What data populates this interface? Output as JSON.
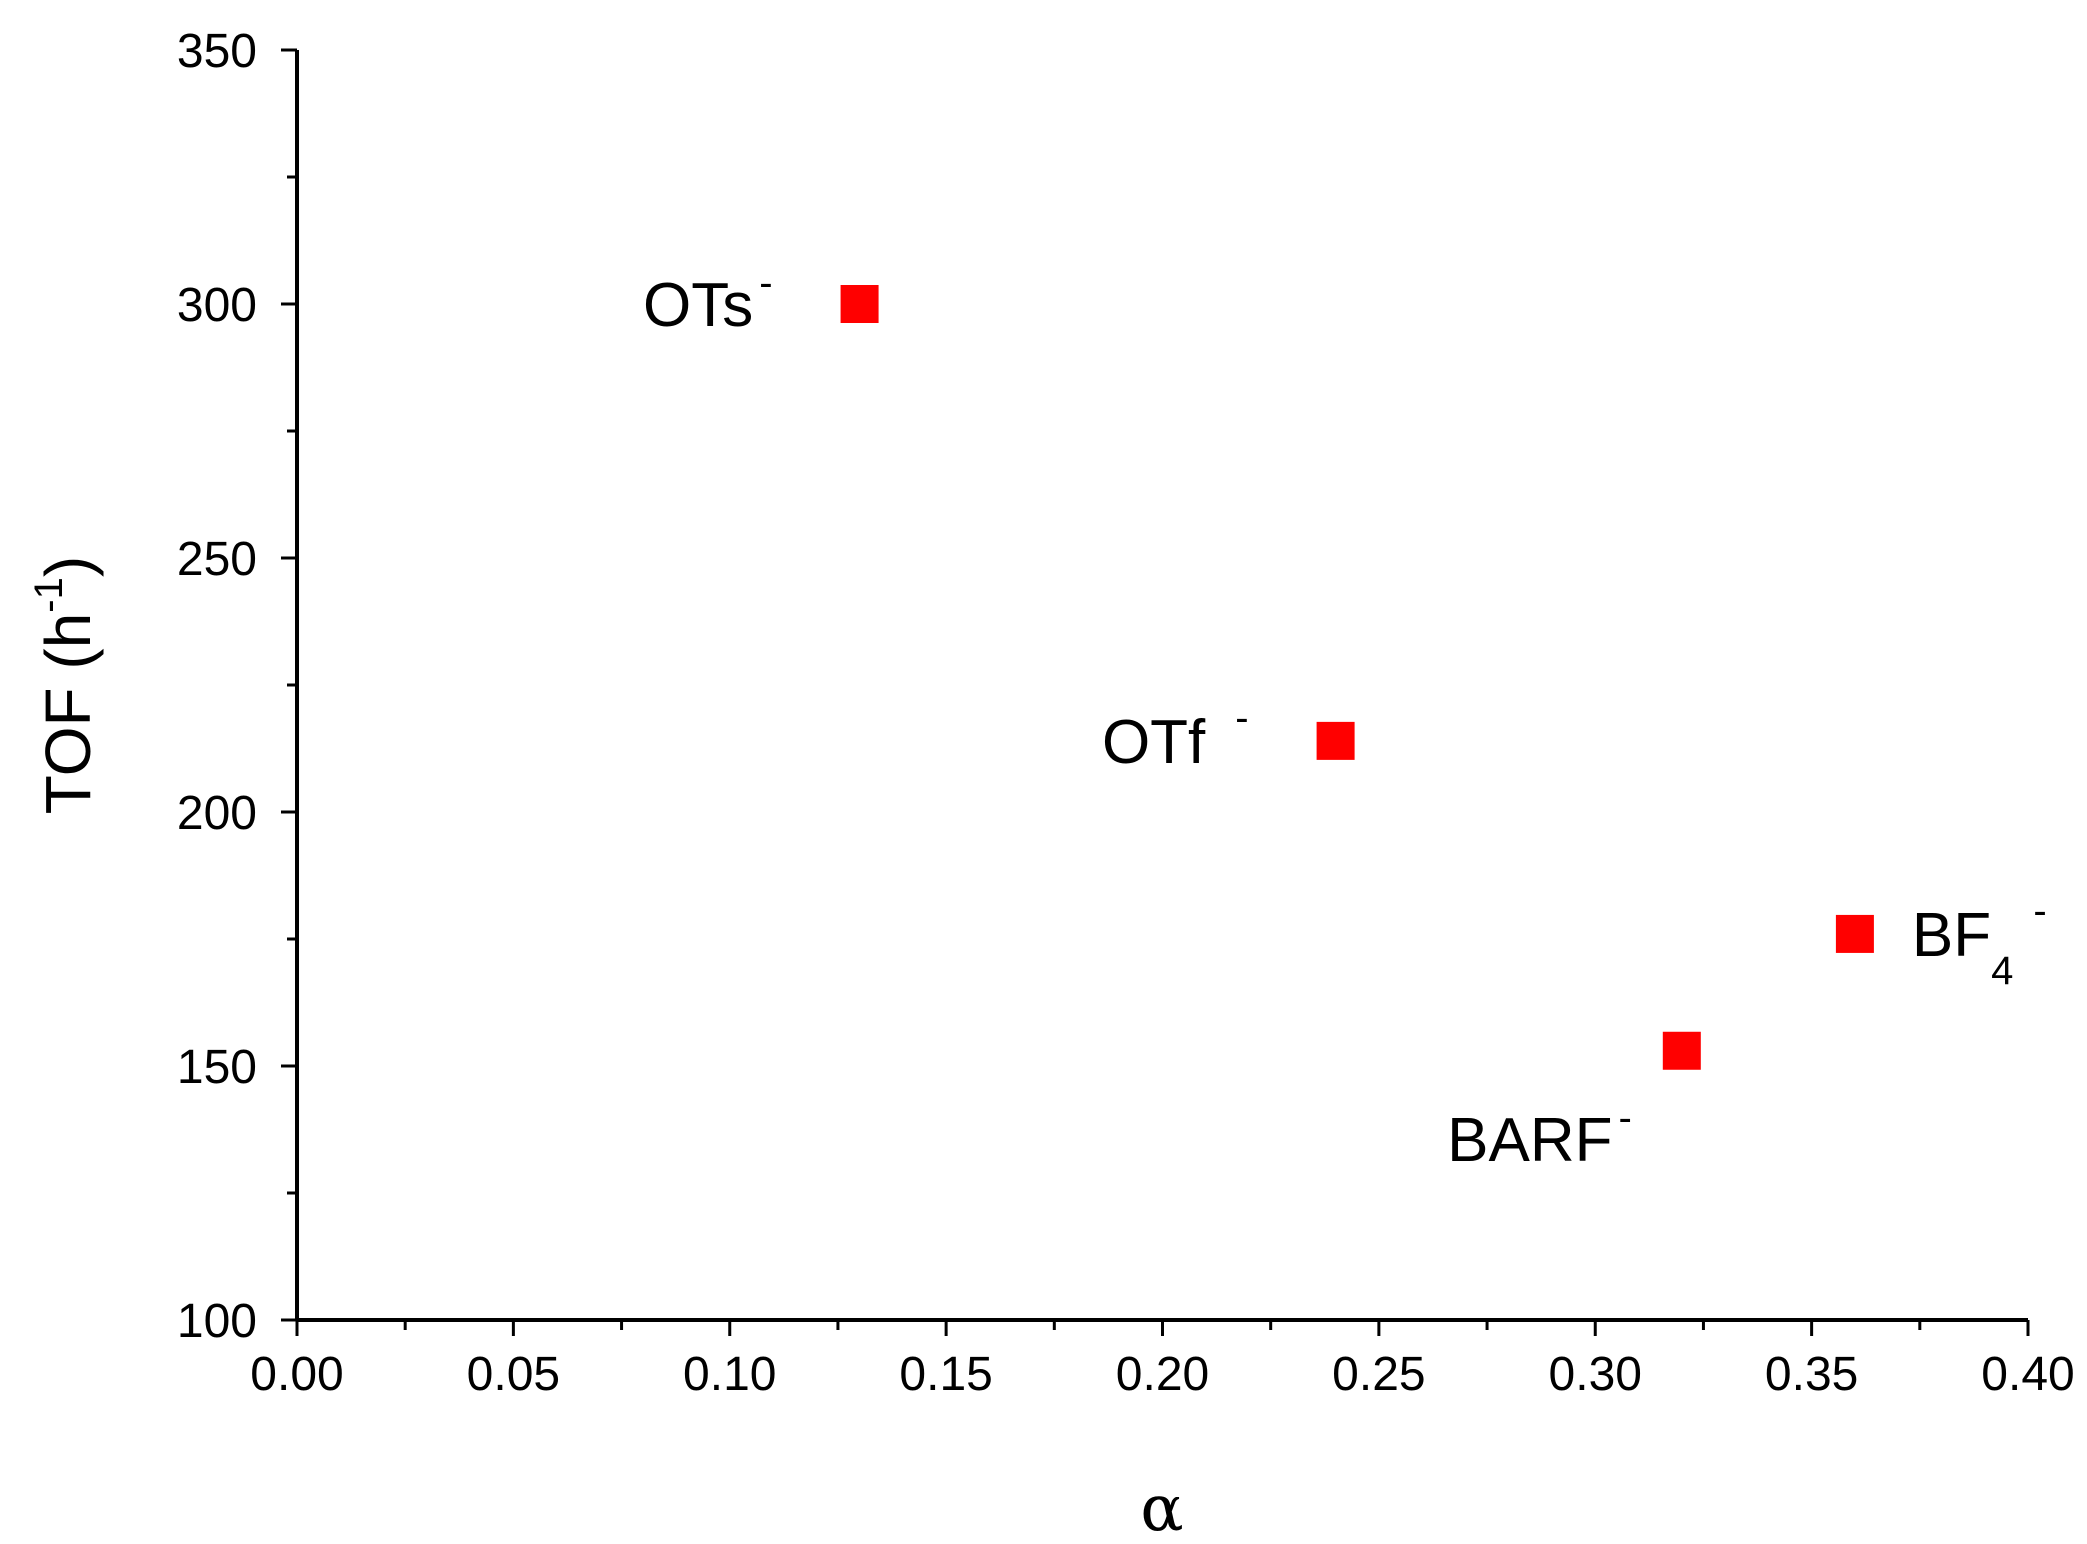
{
  "chart_data": {
    "type": "scatter",
    "title": "",
    "xlabel": "α",
    "ylabel": "TOF (h",
    "ylabel_sup": "-1",
    "ylabel_close": ")",
    "xlim": [
      0.0,
      0.4
    ],
    "ylim": [
      100,
      350
    ],
    "xticks": [
      "0.00",
      "0.05",
      "0.10",
      "0.15",
      "0.20",
      "0.25",
      "0.30",
      "0.35",
      "0.40"
    ],
    "yticks": [
      "100",
      "150",
      "200",
      "250",
      "300",
      "350"
    ],
    "marker": "square",
    "marker_color": "#ff0000",
    "grid": false,
    "points": [
      {
        "x": 0.13,
        "y": 300,
        "label": "OTs",
        "charge": "-"
      },
      {
        "x": 0.24,
        "y": 214,
        "label": "OTf",
        "charge": "-"
      },
      {
        "x": 0.36,
        "y": 176,
        "label": "BF",
        "subscript": "4",
        "charge": "-"
      },
      {
        "x": 0.32,
        "y": 153,
        "label": "BARF",
        "charge": "-"
      }
    ]
  }
}
